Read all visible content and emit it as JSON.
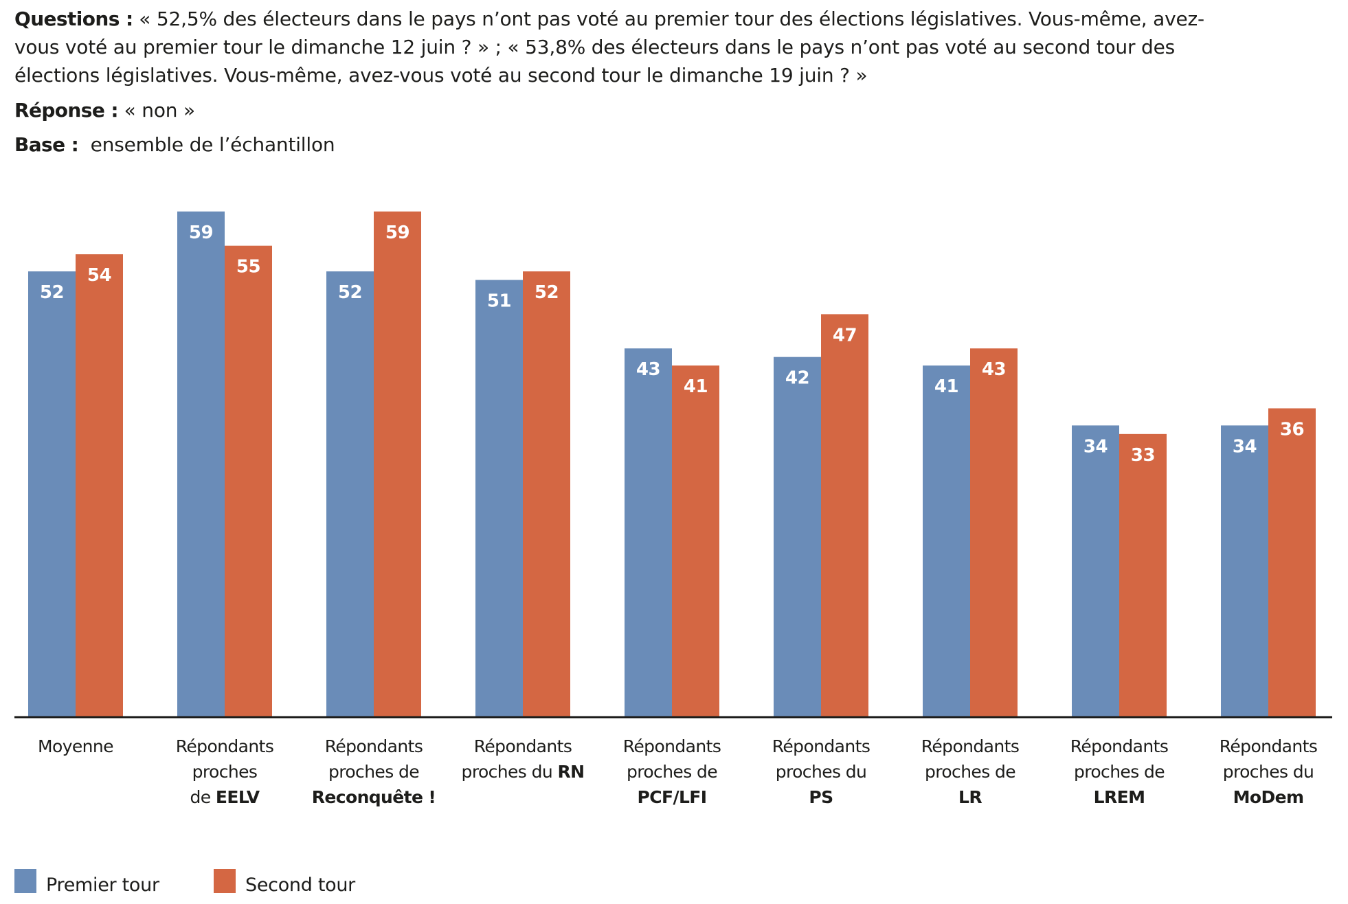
{
  "header": {
    "questions_label": "Questions :",
    "questions_lines": [
      " « 52,5% des électeurs dans le pays n’ont pas voté au premier tour des élections législatives. Vous-même, avez-",
      "vous voté au premier tour le dimanche 12 juin ? » ; « 53,8% des électeurs dans le pays n’ont pas voté au second tour des",
      "élections législatives. Vous-même, avez-vous voté au second tour le dimanche 19 juin ? »"
    ],
    "reponse_label": "Réponse :",
    "reponse_value": " « non »",
    "base_label": "Base :",
    "base_value": "  ensemble de l’échantillon"
  },
  "colors": {
    "premier_tour": "#6a8cb8",
    "second_tour": "#d46743",
    "axis": "#1d1d1b",
    "text": "#1d1d1b",
    "value_label": "#ffffff"
  },
  "legend": {
    "items": [
      {
        "label": "Premier tour",
        "color": "#6a8cb8"
      },
      {
        "label": "Second tour",
        "color": "#d46743"
      }
    ]
  },
  "chart_data": {
    "type": "bar",
    "title": "",
    "xlabel": "",
    "ylabel": "",
    "ylim": [
      0,
      60
    ],
    "grid": false,
    "legend_position": "bottom-left",
    "value_unit": "%",
    "categories": [
      "Moyenne",
      "Répondants proches de EELV",
      "Répondants proches de Reconquête !",
      "Répondants proches du RN",
      "Répondants proches de PCF/LFI",
      "Répondants proches du PS",
      "Répondants proches de LR",
      "Répondants proches de LREM",
      "Répondants proches du MoDem"
    ],
    "category_lines": [
      [
        [
          {
            "t": "Moyenne"
          }
        ]
      ],
      [
        [
          {
            "t": "Répondants"
          }
        ],
        [
          {
            "t": "proches"
          }
        ],
        [
          {
            "t": "de "
          },
          {
            "t": "EELV",
            "b": true
          }
        ]
      ],
      [
        [
          {
            "t": "Répondants"
          }
        ],
        [
          {
            "t": "proches de"
          }
        ],
        [
          {
            "t": "Reconquête !",
            "b": true
          }
        ]
      ],
      [
        [
          {
            "t": "Répondants"
          }
        ],
        [
          {
            "t": "proches du "
          },
          {
            "t": "RN",
            "b": true
          }
        ]
      ],
      [
        [
          {
            "t": "Répondants"
          }
        ],
        [
          {
            "t": "proches de"
          }
        ],
        [
          {
            "t": "PCF/LFI",
            "b": true
          }
        ]
      ],
      [
        [
          {
            "t": "Répondants"
          }
        ],
        [
          {
            "t": "proches du"
          }
        ],
        [
          {
            "t": "PS",
            "b": true
          }
        ]
      ],
      [
        [
          {
            "t": "Répondants"
          }
        ],
        [
          {
            "t": "proches de"
          }
        ],
        [
          {
            "t": "LR",
            "b": true
          }
        ]
      ],
      [
        [
          {
            "t": "Répondants"
          }
        ],
        [
          {
            "t": "proches de"
          }
        ],
        [
          {
            "t": "LREM",
            "b": true
          }
        ]
      ],
      [
        [
          {
            "t": "Répondants"
          }
        ],
        [
          {
            "t": "proches du"
          }
        ],
        [
          {
            "t": "MoDem",
            "b": true
          }
        ]
      ]
    ],
    "series": [
      {
        "name": "Premier tour",
        "color": "#6a8cb8",
        "values": [
          52,
          59,
          52,
          51,
          43,
          42,
          41,
          34,
          34
        ]
      },
      {
        "name": "Second tour",
        "color": "#d46743",
        "values": [
          54,
          55,
          59,
          52,
          41,
          47,
          43,
          33,
          36
        ]
      }
    ]
  }
}
